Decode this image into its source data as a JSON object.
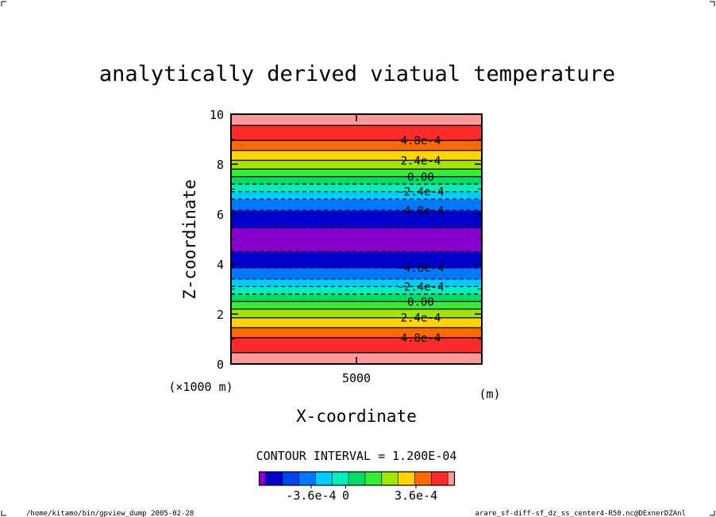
{
  "chart_data": {
    "type": "heatmap",
    "title": "analytically derived viatual temperature",
    "xlabel": "X-coordinate",
    "ylabel": "Z-coordinate",
    "x_scale_note": "(×1000 m)",
    "x_unit": "(m)",
    "xlim": [
      1000,
      9000
    ],
    "ylim": [
      0,
      10
    ],
    "x_ticks": [
      5000
    ],
    "x_tick_labels": [
      "5000"
    ],
    "y_ticks": [
      0,
      2,
      4,
      6,
      8,
      10
    ],
    "y_tick_labels": [
      "0",
      "2",
      "4",
      "6",
      "8",
      "10"
    ],
    "bands": [
      {
        "z0": 0.0,
        "z1": 0.45,
        "color": "#ff9999"
      },
      {
        "z0": 0.45,
        "z1": 1.05,
        "color": "#ff2a2a"
      },
      {
        "z0": 1.05,
        "z1": 1.45,
        "color": "#ff6a00"
      },
      {
        "z0": 1.45,
        "z1": 1.85,
        "color": "#ffd400"
      },
      {
        "z0": 1.85,
        "z1": 2.2,
        "color": "#a0e600"
      },
      {
        "z0": 2.2,
        "z1": 2.5,
        "color": "#33ee33"
      },
      {
        "z0": 2.5,
        "z1": 2.8,
        "color": "#00dd66"
      },
      {
        "z0": 2.8,
        "z1": 3.1,
        "color": "#00eebb"
      },
      {
        "z0": 3.1,
        "z1": 3.4,
        "color": "#00ccff"
      },
      {
        "z0": 3.4,
        "z1": 3.85,
        "color": "#0077ff"
      },
      {
        "z0": 3.85,
        "z1": 4.5,
        "color": "#0000cc"
      },
      {
        "z0": 4.5,
        "z1": 5.45,
        "color": "#8800cc"
      },
      {
        "z0": 5.45,
        "z1": 6.15,
        "color": "#0000cc"
      },
      {
        "z0": 6.15,
        "z1": 6.6,
        "color": "#0077ff"
      },
      {
        "z0": 6.6,
        "z1": 6.9,
        "color": "#00ccff"
      },
      {
        "z0": 6.9,
        "z1": 7.2,
        "color": "#00eebb"
      },
      {
        "z0": 7.2,
        "z1": 7.5,
        "color": "#00dd66"
      },
      {
        "z0": 7.5,
        "z1": 7.8,
        "color": "#33ee33"
      },
      {
        "z0": 7.8,
        "z1": 8.15,
        "color": "#a0e600"
      },
      {
        "z0": 8.15,
        "z1": 8.55,
        "color": "#ffd400"
      },
      {
        "z0": 8.55,
        "z1": 8.95,
        "color": "#ff6a00"
      },
      {
        "z0": 8.95,
        "z1": 9.55,
        "color": "#ff2a2a"
      },
      {
        "z0": 9.55,
        "z1": 10.0,
        "color": "#ff9999"
      }
    ],
    "contours": [
      {
        "z": 0.45,
        "dashed": false
      },
      {
        "z": 1.05,
        "dashed": false
      },
      {
        "z": 1.45,
        "dashed": false
      },
      {
        "z": 1.85,
        "dashed": false
      },
      {
        "z": 2.2,
        "dashed": false
      },
      {
        "z": 2.5,
        "dashed": false
      },
      {
        "z": 2.8,
        "dashed": true
      },
      {
        "z": 3.1,
        "dashed": true
      },
      {
        "z": 3.4,
        "dashed": true
      },
      {
        "z": 3.85,
        "dashed": true
      },
      {
        "z": 4.5,
        "dashed": true
      },
      {
        "z": 5.45,
        "dashed": true
      },
      {
        "z": 6.15,
        "dashed": true
      },
      {
        "z": 6.6,
        "dashed": true
      },
      {
        "z": 6.9,
        "dashed": true
      },
      {
        "z": 7.2,
        "dashed": true
      },
      {
        "z": 7.5,
        "dashed": false
      },
      {
        "z": 7.8,
        "dashed": false
      },
      {
        "z": 8.15,
        "dashed": false
      },
      {
        "z": 8.55,
        "dashed": false
      },
      {
        "z": 8.95,
        "dashed": false
      },
      {
        "z": 9.55,
        "dashed": false
      }
    ],
    "contour_labels": [
      {
        "z": 1.05,
        "text": "4.8e-4"
      },
      {
        "z": 1.85,
        "text": "2.4e-4"
      },
      {
        "z": 2.5,
        "text": "0.00"
      },
      {
        "z": 3.1,
        "text": "-2.4e-4"
      },
      {
        "z": 3.85,
        "text": "-4.8e-4"
      },
      {
        "z": 6.15,
        "text": "-4.8e-4"
      },
      {
        "z": 6.9,
        "text": "-2.4e-4"
      },
      {
        "z": 7.5,
        "text": "0.00"
      },
      {
        "z": 8.15,
        "text": "2.4e-4"
      },
      {
        "z": 8.95,
        "text": "4.8e-4"
      }
    ],
    "contour_interval_text": "CONTOUR INTERVAL = 1.200E-04",
    "colorbar": {
      "colors": [
        "#8800cc",
        "#0000cc",
        "#0044ee",
        "#0077ff",
        "#00ccff",
        "#00eebb",
        "#00dd66",
        "#33ee33",
        "#a0e600",
        "#ffd400",
        "#ff6a00",
        "#ff2a2a",
        "#ff9999"
      ],
      "tick_labels": [
        "-3.6e-4",
        "0",
        "3.6e-4"
      ],
      "tick_positions_index": [
        3,
        6,
        9
      ]
    }
  },
  "footer": {
    "left": "/home/kitamo/bin/gpview_dump  2005-02-28",
    "right": "arare_sf-diff-sf_dz_ss_center4-R50.nc@DExnerDZAnl"
  }
}
